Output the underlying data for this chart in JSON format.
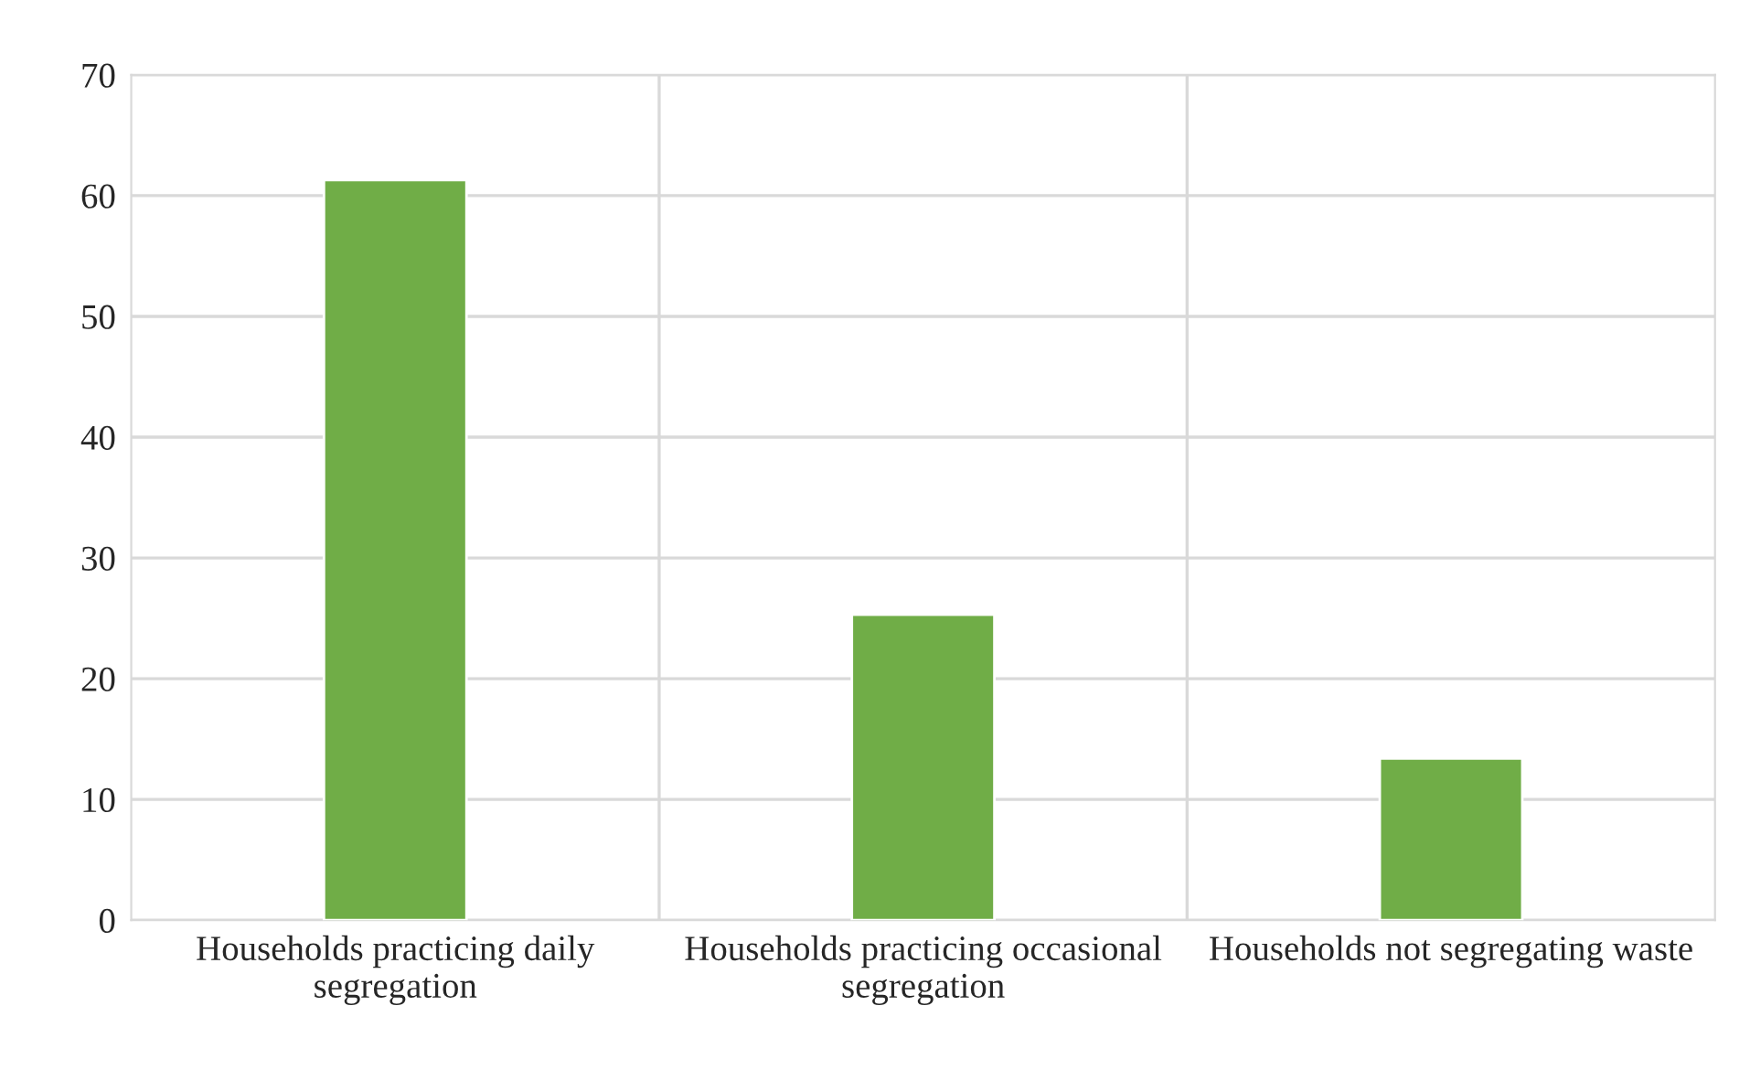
{
  "chart_data": {
    "type": "bar",
    "categories": [
      "Households practicing daily segregation",
      "Households practicing occasional segregation",
      "Households not segregating waste"
    ],
    "values": [
      61.3,
      25.3,
      13.4
    ],
    "color": "#70ad47",
    "ylim": [
      0,
      70
    ],
    "yticks": [
      0,
      10,
      20,
      30,
      40,
      50,
      60,
      70
    ],
    "grid": true
  }
}
